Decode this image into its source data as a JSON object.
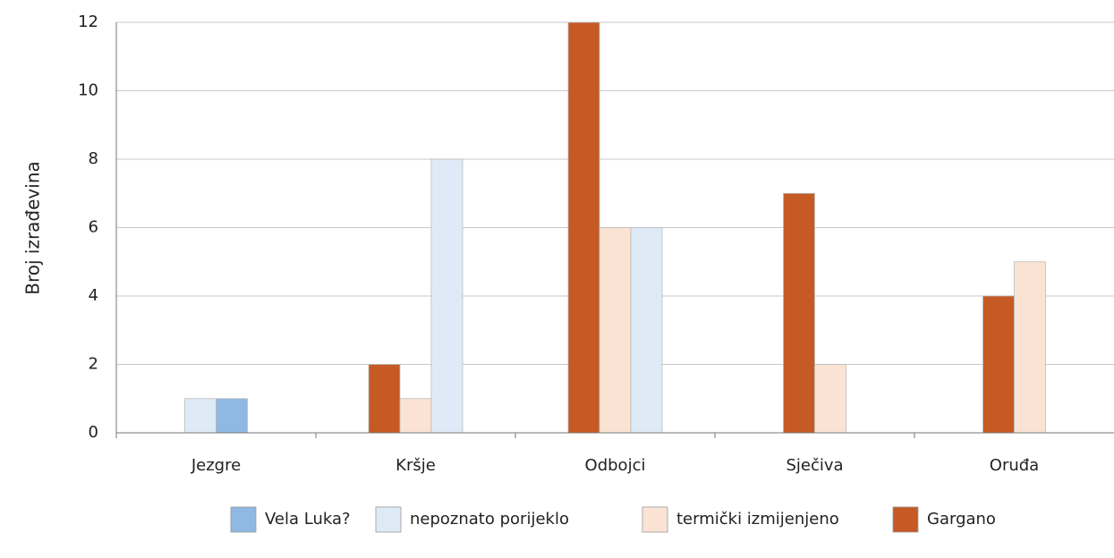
{
  "chart_data": {
    "type": "bar",
    "y_label": "Broj izrađevina",
    "categories": [
      "Jezgre",
      "Kršje",
      "Odbojci",
      "Sječiva",
      "Oruđa"
    ],
    "series": [
      {
        "name": "Vela Luka?",
        "color": "#8fb8e2",
        "values": [
          1,
          null,
          null,
          null,
          null
        ]
      },
      {
        "name": "nepoznato porijeklo",
        "color": "#deebf7",
        "values": [
          1,
          8,
          6,
          null,
          null
        ]
      },
      {
        "name": "termički izmijenjeno",
        "color": "#fbe3d4",
        "values": [
          null,
          1,
          6,
          2,
          5
        ]
      },
      {
        "name": "Gargano",
        "color": "#c55a24",
        "values": [
          null,
          2,
          12,
          7,
          4
        ]
      }
    ],
    "ylim": [
      0,
      12
    ],
    "yticks": [
      0,
      2,
      4,
      6,
      8,
      10,
      12
    ],
    "grid": true,
    "legend": "bottom"
  }
}
